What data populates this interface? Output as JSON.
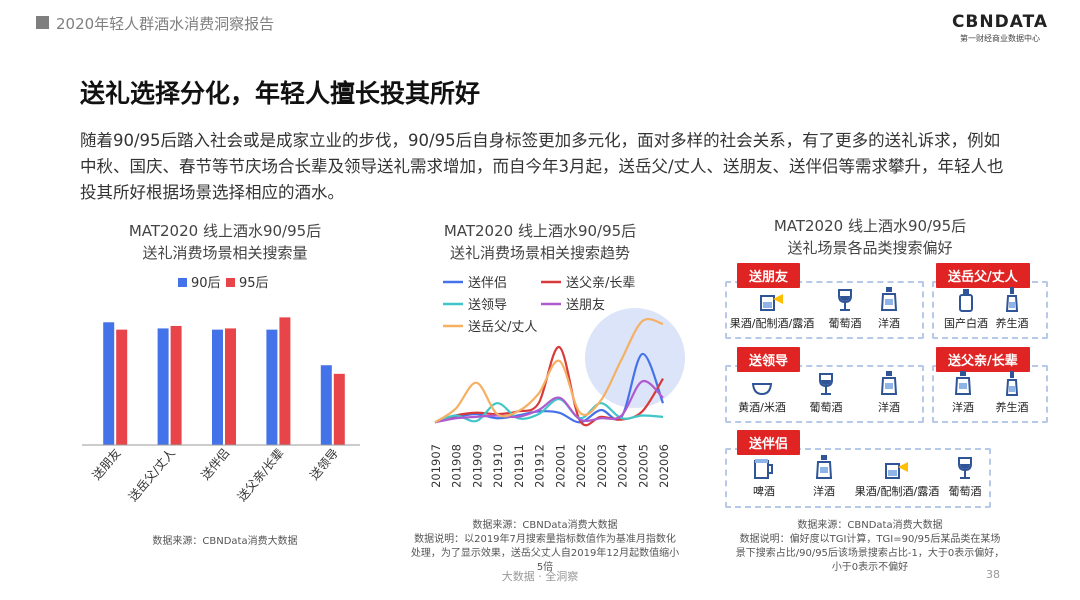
{
  "header": {
    "title": "2020年轻人群酒水消费洞察报告",
    "logo_text": "CBNDATA",
    "logo_sub": "第一财经商业数据中心"
  },
  "main_title": "送礼选择分化，年轻人擅长投其所好",
  "body_text": "随着90/95后踏入社会或是成家立业的步伐，90/95后自身标签更加多元化，面对多样的社会关系，有了更多的送礼诉求，例如中秋、国庆、春节等节庆场合长辈及领导送礼需求增加，而自今年3月起，送岳父/丈人、送朋友、送伴侣等需求攀升，年轻人也投其所好根据场景选择相应的酒水。",
  "chart1": {
    "title1": "MAT2020 线上酒水90/95后",
    "title2": "送礼消费场景相关搜索量",
    "source": "数据来源：CBNData消费大数据"
  },
  "chart2": {
    "title1": "MAT2020 线上酒水90/95后",
    "title2": "送礼消费场景相关搜索趋势",
    "source": "数据来源：CBNData消费大数据",
    "note1": "数据说明：以2019年7月搜索量指标数值作为基准月指数化",
    "note2": "处理，为了显示效果，送岳父丈人自2019年12月起数值缩小",
    "note3": "5倍"
  },
  "panel3": {
    "title1": "MAT2020 线上酒水90/95后",
    "title2": "送礼场景各品类搜索偏好",
    "source": "数据来源：CBNData消费大数据",
    "note1": "数据说明：偏好度以TGI计算，TGI=90/95后某品类在某场",
    "note2": "景下搜索占比/90/95后该场景搜索占比-1，大于0表示偏好，",
    "note3": "小于0表示不偏好",
    "groups": {
      "friends": {
        "tag": "送朋友",
        "items": [
          "果酒/配制酒/露酒",
          "葡萄酒",
          "洋酒"
        ]
      },
      "father_in_law": {
        "tag": "送岳父/丈人",
        "items": [
          "国产白酒",
          "养生酒"
        ]
      },
      "leader": {
        "tag": "送领导",
        "items": [
          "黄酒/米酒",
          "葡萄酒",
          "洋酒"
        ]
      },
      "parents": {
        "tag": "送父亲/长辈",
        "items": [
          "洋酒",
          "养生酒"
        ]
      },
      "partner": {
        "tag": "送伴侣",
        "items": [
          "啤酒",
          "洋酒",
          "果酒/配制酒/露酒",
          "葡萄酒"
        ]
      }
    }
  },
  "colors": {
    "blue": "#4472e8",
    "red": "#e8454a",
    "teal": "#3fc6c8",
    "purple": "#b05ad0",
    "orange": "#f5b063",
    "dark_red": "#d83a3a",
    "accent_tag": "#e02424"
  },
  "footer": {
    "center": "大数据 · 全洞察",
    "page": "38"
  },
  "chart_data": [
    {
      "type": "bar",
      "categories": [
        "送朋友",
        "送岳父/丈人",
        "送伴侣",
        "送父亲/长辈",
        "送领导"
      ],
      "series": [
        {
          "name": "90后",
          "color": "#4472e8",
          "values": [
            100,
            95,
            94,
            94,
            65
          ]
        },
        {
          "name": "95后",
          "color": "#e8454a",
          "values": [
            94,
            97,
            95,
            104,
            58
          ]
        }
      ],
      "ylim": [
        0,
        110
      ],
      "legend": "top"
    },
    {
      "type": "line",
      "x": [
        "201907",
        "201908",
        "201909",
        "201910",
        "201911",
        "201912",
        "202001",
        "202002",
        "202003",
        "202004",
        "202005",
        "202006"
      ],
      "series": [
        {
          "name": "送伴侣",
          "color": "#4472e8",
          "values": [
            1.0,
            1.4,
            1.6,
            1.3,
            1.5,
            1.8,
            1.7,
            1.0,
            1.9,
            1.4,
            6.0,
            2.4
          ]
        },
        {
          "name": "送父亲/长辈",
          "color": "#d83a3a",
          "values": [
            1.0,
            1.5,
            1.7,
            1.6,
            1.8,
            2.4,
            6.5,
            1.1,
            1.4,
            1.2,
            1.8,
            4.2
          ]
        },
        {
          "name": "送领导",
          "color": "#3fc6c8",
          "values": [
            1.0,
            1.5,
            1.1,
            2.4,
            1.3,
            1.6,
            2.7,
            1.3,
            2.4,
            1.3,
            1.5,
            1.4
          ]
        },
        {
          "name": "送朋友",
          "color": "#b05ad0",
          "values": [
            1.0,
            1.3,
            1.4,
            1.5,
            1.4,
            1.9,
            2.8,
            1.2,
            1.3,
            1.5,
            4.0,
            2.8
          ]
        },
        {
          "name": "送岳父/丈人",
          "color": "#f5b063",
          "values": [
            1.0,
            2.0,
            3.9,
            1.6,
            1.8,
            3.1,
            5.5,
            1.7,
            2.6,
            5.6,
            8.4,
            8.2
          ]
        }
      ],
      "ylim": [
        0,
        9
      ],
      "legend": "top-left"
    }
  ]
}
